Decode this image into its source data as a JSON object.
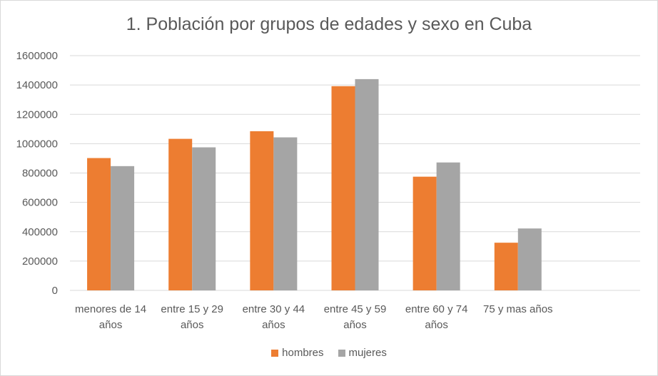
{
  "chart_data": {
    "type": "bar",
    "title": "1. Población por grupos de edades y sexo en Cuba",
    "categories": [
      [
        "menores de 14",
        "años"
      ],
      [
        "entre 15 y 29",
        "años"
      ],
      [
        "entre 30 y 44",
        "años"
      ],
      [
        "entre 45 y 59",
        "años"
      ],
      [
        "entre 60 y 74",
        "años"
      ],
      [
        "75 y mas años"
      ],
      [
        ""
      ]
    ],
    "series": [
      {
        "name": "hombres",
        "color": "#ed7d31",
        "values": [
          902000,
          1033000,
          1085000,
          1392000,
          775000,
          325000,
          null
        ]
      },
      {
        "name": "mujeres",
        "color": "#a5a5a5",
        "values": [
          847000,
          975000,
          1043000,
          1440000,
          872000,
          422000,
          null
        ]
      }
    ],
    "ylim": [
      0,
      1600000
    ],
    "yticks": [
      "0",
      "200000",
      "400000",
      "600000",
      "800000",
      "1000000",
      "1200000",
      "1400000",
      "1600000"
    ],
    "grid": true,
    "legend_position": "bottom"
  }
}
